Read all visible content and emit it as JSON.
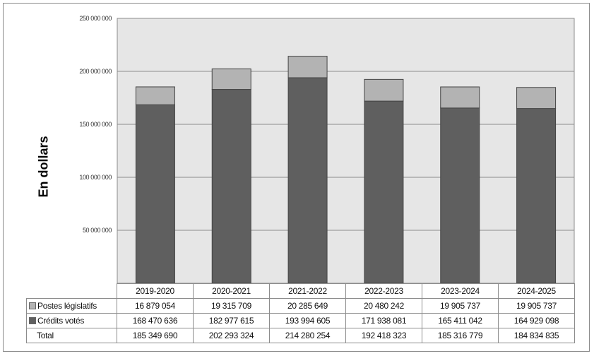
{
  "chart_data": {
    "type": "bar",
    "stacked": true,
    "title": "",
    "xlabel": "",
    "ylabel": "En dollars",
    "ylim": [
      0,
      250000000
    ],
    "yticks": [
      {
        "value": 50000000,
        "label": "50 000 000"
      },
      {
        "value": 100000000,
        "label": "100 000 000"
      },
      {
        "value": 150000000,
        "label": "150 000 000"
      },
      {
        "value": 200000000,
        "label": "200 000 000"
      },
      {
        "value": 250000000,
        "label": "250 000 000"
      }
    ],
    "grid": true,
    "legend": "data-table",
    "categories": [
      "2019-2020",
      "2020-2021",
      "2021-2022",
      "2022-2023",
      "2023-2024",
      "2024-2025"
    ],
    "series": [
      {
        "name": "Crédits votés",
        "color": "#5f5f5f",
        "values": [
          168470636,
          182977615,
          193994605,
          171938081,
          165411042,
          164929098
        ],
        "labels": [
          "168 470 636",
          "182 977 615",
          "193 994 605",
          "171 938 081",
          "165 411 042",
          "164 929 098"
        ]
      },
      {
        "name": "Postes législatifs",
        "color": "#b3b3b3",
        "values": [
          16879054,
          19315709,
          20285649,
          20480242,
          19905737,
          19905737
        ],
        "labels": [
          "16 879 054",
          "19 315 709",
          "20 285 649",
          "20 480 242",
          "19 905 737",
          "19 905 737"
        ]
      }
    ],
    "total": {
      "name": "Total",
      "values": [
        185349690,
        202293324,
        214280254,
        192418323,
        185316779,
        184834835
      ],
      "labels": [
        "185 349 690",
        "202 293 324",
        "214 280 254",
        "192 418 323",
        "185 316 779",
        "184 834 835"
      ]
    },
    "plot_background": "#e6e6e6"
  }
}
